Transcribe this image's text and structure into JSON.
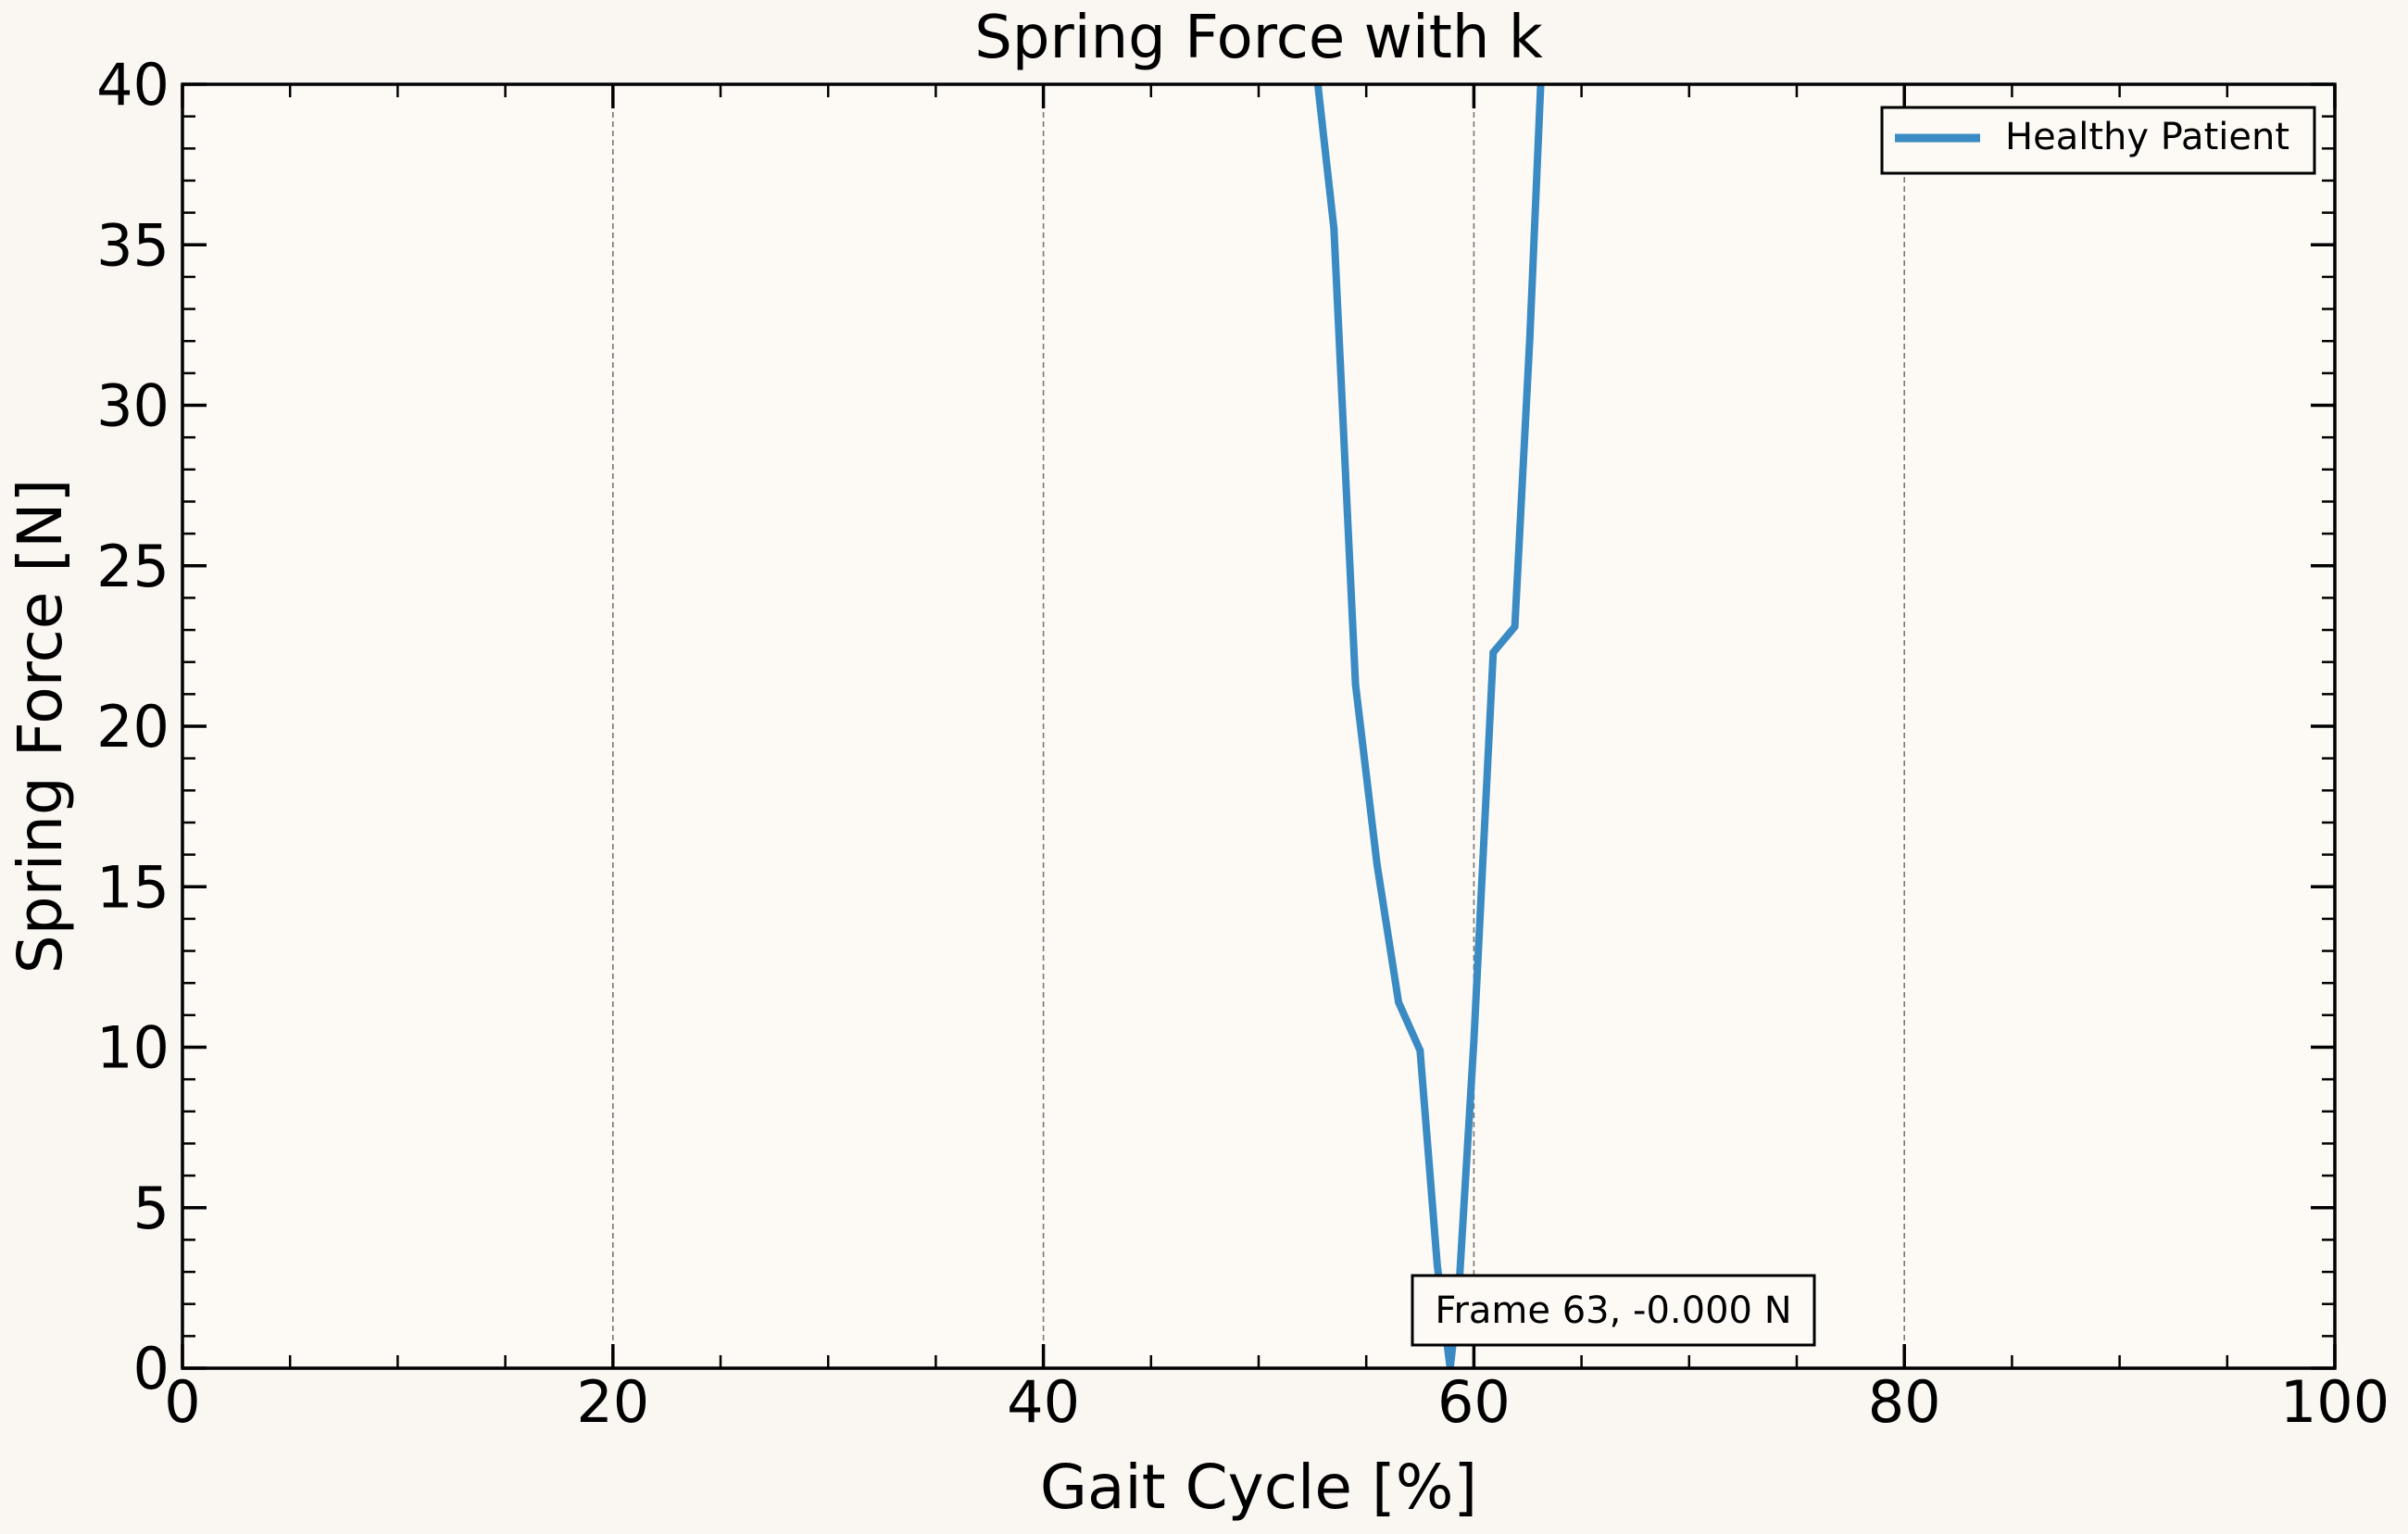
{
  "chart_data": {
    "type": "line",
    "title": "Spring Force with k",
    "xlabel": "Gait Cycle [%]",
    "ylabel": "Spring Force [N]",
    "xlim": [
      0,
      100
    ],
    "ylim": [
      0,
      40
    ],
    "xticks": [
      0,
      20,
      40,
      60,
      80,
      100
    ],
    "xtick_labels": [
      "0",
      "20",
      "40",
      "60",
      "80",
      "100"
    ],
    "yticks": [
      0,
      5,
      10,
      15,
      20,
      25,
      30,
      35,
      40
    ],
    "ytick_labels": [
      "0",
      "5",
      "10",
      "15",
      "20",
      "25",
      "30",
      "35",
      "40"
    ],
    "grid": "vertical dashed at major x ticks",
    "legend_position": "top-right",
    "series": [
      {
        "name": "Healthy Patient",
        "color": "#3a8ac3",
        "x": [
          52.5,
          53.5,
          54.5,
          55.5,
          56.5,
          57.5,
          58.3,
          58.9,
          59.3,
          60.0,
          60.9,
          61.9,
          62.6,
          63.2
        ],
        "y": [
          41.5,
          35.5,
          21.3,
          15.7,
          11.4,
          9.9,
          3.2,
          0.0,
          2.4,
          10.2,
          22.3,
          23.1,
          32.1,
          41.5
        ]
      }
    ],
    "annotation": {
      "text": "Frame 63, -0.000 N",
      "x": 59.0,
      "y": 0.0
    }
  }
}
